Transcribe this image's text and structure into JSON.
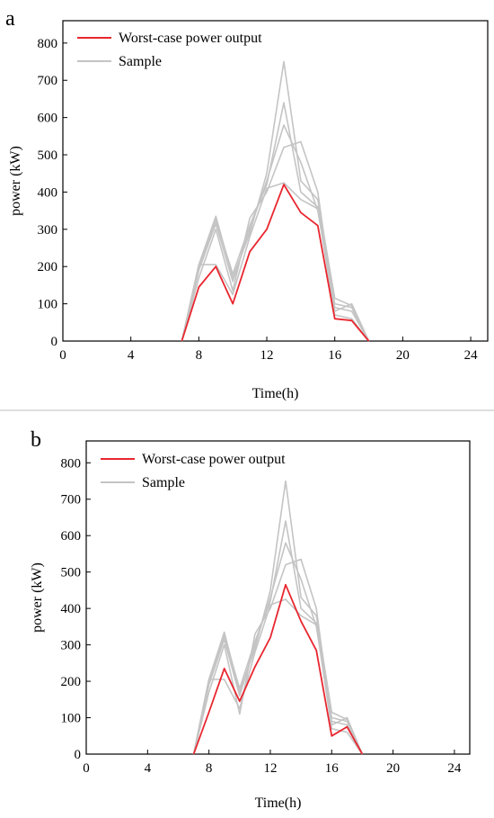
{
  "chart_data": [
    {
      "panel_label": "a",
      "type": "line",
      "xlabel": "Time(h)",
      "ylabel": "power (kW)",
      "xlim": [
        0,
        25
      ],
      "ylim": [
        0,
        860
      ],
      "xticks": [
        0,
        4,
        8,
        12,
        16,
        20,
        24
      ],
      "yticks": [
        0,
        100,
        200,
        300,
        400,
        500,
        600,
        700,
        800
      ],
      "legend": {
        "position": "top-left",
        "entries": [
          "Worst-case power output",
          "Sample"
        ]
      },
      "grid": false,
      "colors": {
        "worst": "#e8262f",
        "sample": "#c4c4c4"
      },
      "worst_case": {
        "name": "Worst-case power output",
        "x": [
          7,
          8,
          9,
          10,
          11,
          12,
          13,
          14,
          15,
          16,
          17,
          18
        ],
        "values": [
          0,
          145,
          200,
          100,
          240,
          300,
          420,
          345,
          310,
          60,
          55,
          0
        ]
      },
      "samples": [
        {
          "name": "Sample",
          "x": [
            7,
            8,
            9,
            10,
            11,
            12,
            13,
            14,
            15,
            16,
            17,
            18
          ],
          "values": [
            0,
            205,
            335,
            170,
            290,
            450,
            750,
            430,
            380,
            115,
            95,
            0
          ]
        },
        {
          "name": "Sample",
          "x": [
            7,
            8,
            9,
            10,
            11,
            12,
            13,
            14,
            15,
            16,
            17,
            18
          ],
          "values": [
            0,
            200,
            325,
            180,
            310,
            420,
            640,
            400,
            360,
            100,
            90,
            0
          ]
        },
        {
          "name": "Sample",
          "x": [
            7,
            8,
            9,
            10,
            11,
            12,
            13,
            14,
            15,
            16,
            17,
            18
          ],
          "values": [
            0,
            190,
            315,
            160,
            300,
            430,
            580,
            480,
            350,
            90,
            80,
            0
          ]
        },
        {
          "name": "Sample",
          "x": [
            7,
            8,
            9,
            10,
            11,
            12,
            13,
            14,
            15,
            16,
            17,
            18
          ],
          "values": [
            0,
            170,
            300,
            135,
            330,
            400,
            520,
            535,
            400,
            80,
            100,
            0
          ]
        },
        {
          "name": "Sample",
          "x": [
            7,
            8,
            9,
            10,
            11,
            12,
            13,
            14,
            15,
            16,
            17,
            18
          ],
          "values": [
            0,
            205,
            205,
            125,
            280,
            410,
            425,
            380,
            355,
            70,
            60,
            0
          ]
        }
      ]
    },
    {
      "panel_label": "b",
      "type": "line",
      "xlabel": "Time(h)",
      "ylabel": "power (kW)",
      "xlim": [
        0,
        25
      ],
      "ylim": [
        0,
        860
      ],
      "xticks": [
        0,
        4,
        8,
        12,
        16,
        20,
        24
      ],
      "yticks": [
        0,
        100,
        200,
        300,
        400,
        500,
        600,
        700,
        800
      ],
      "legend": {
        "position": "top-left",
        "entries": [
          "Worst-case power output",
          "Sample"
        ]
      },
      "grid": false,
      "colors": {
        "worst": "#e8262f",
        "sample": "#c4c4c4"
      },
      "worst_case": {
        "name": "Worst-case power output",
        "x": [
          7,
          8,
          9,
          10,
          11,
          12,
          13,
          14,
          15,
          16,
          17,
          18
        ],
        "values": [
          0,
          115,
          235,
          145,
          240,
          320,
          465,
          365,
          285,
          50,
          75,
          0
        ]
      },
      "samples": [
        {
          "name": "Sample",
          "x": [
            7,
            8,
            9,
            10,
            11,
            12,
            13,
            14,
            15,
            16,
            17,
            18
          ],
          "values": [
            0,
            205,
            335,
            170,
            290,
            450,
            750,
            430,
            380,
            115,
            95,
            0
          ]
        },
        {
          "name": "Sample",
          "x": [
            7,
            8,
            9,
            10,
            11,
            12,
            13,
            14,
            15,
            16,
            17,
            18
          ],
          "values": [
            0,
            200,
            325,
            180,
            310,
            420,
            640,
            400,
            360,
            100,
            90,
            0
          ]
        },
        {
          "name": "Sample",
          "x": [
            7,
            8,
            9,
            10,
            11,
            12,
            13,
            14,
            15,
            16,
            17,
            18
          ],
          "values": [
            0,
            190,
            315,
            160,
            300,
            430,
            580,
            480,
            350,
            90,
            80,
            0
          ]
        },
        {
          "name": "Sample",
          "x": [
            7,
            8,
            9,
            10,
            11,
            12,
            13,
            14,
            15,
            16,
            17,
            18
          ],
          "values": [
            0,
            170,
            300,
            110,
            330,
            400,
            520,
            535,
            400,
            80,
            100,
            0
          ]
        },
        {
          "name": "Sample",
          "x": [
            7,
            8,
            9,
            10,
            11,
            12,
            13,
            14,
            15,
            16,
            17,
            18
          ],
          "values": [
            0,
            205,
            205,
            125,
            280,
            410,
            425,
            380,
            355,
            70,
            60,
            0
          ]
        }
      ]
    }
  ]
}
